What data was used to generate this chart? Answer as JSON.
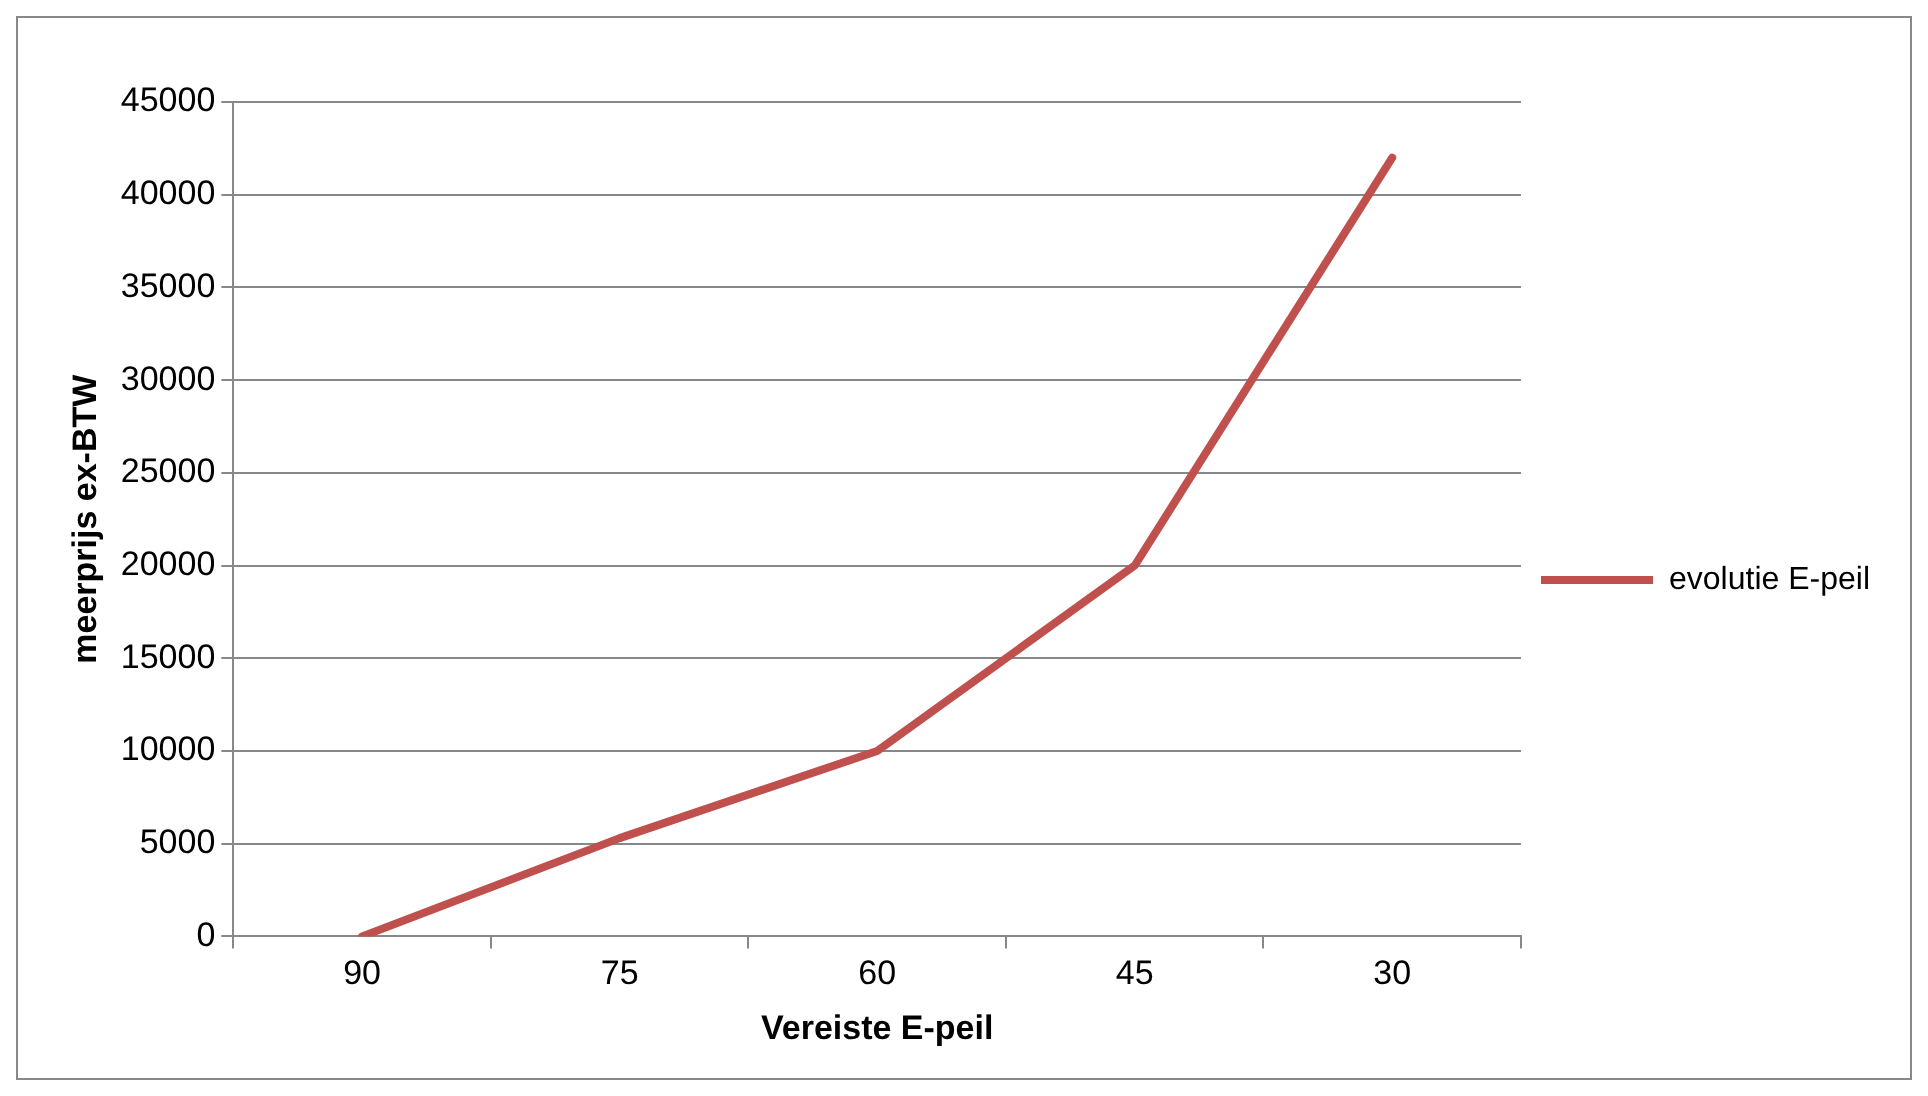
{
  "chart_data": {
    "type": "line",
    "xlabel": "Vereiste E-peil",
    "ylabel": "meerprijs ex-BTW",
    "categories": [
      "90",
      "75",
      "60",
      "45",
      "30"
    ],
    "series": [
      {
        "name": "evolutie E-peil",
        "color": "#c0504d",
        "values": [
          0,
          5300,
          10000,
          20000,
          42000
        ]
      }
    ],
    "ylim": [
      0,
      45000
    ],
    "yticks": [
      0,
      5000,
      10000,
      15000,
      20000,
      25000,
      30000,
      35000,
      40000,
      45000
    ],
    "grid": "y",
    "legend": "right",
    "marker": "none",
    "line_style": "solid"
  }
}
